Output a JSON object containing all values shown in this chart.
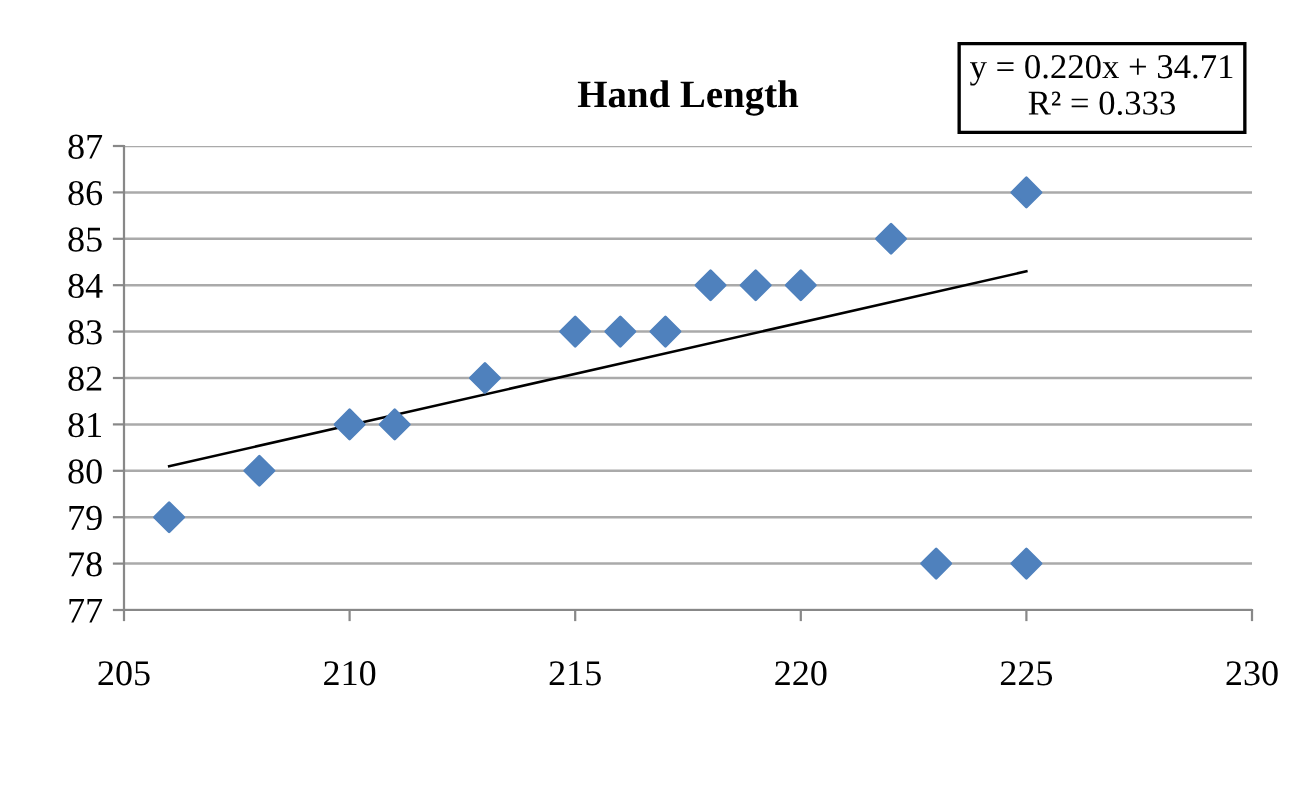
{
  "chart_data": {
    "type": "scatter",
    "title": "Hand Length",
    "series": [
      {
        "color": "#4f81bd",
        "marker": "diamond",
        "x": [
          206,
          208,
          210,
          211,
          213,
          215,
          216,
          217,
          218,
          219,
          220,
          222,
          225,
          223,
          225
        ],
        "values": [
          79,
          80,
          81,
          81,
          82,
          83,
          83,
          83,
          84,
          84,
          84,
          85,
          86,
          78,
          78
        ]
      },
      {
        "type": "line",
        "color": "#000000",
        "marker": "none",
        "line_style": "solid",
        "x": [
          206,
          225
        ],
        "values": [
          80.1,
          84.3
        ]
      }
    ],
    "annotations": [
      "y = 0.220x + 34.71\nR² = 0.333"
    ],
    "xlim": [
      205,
      230
    ],
    "xticks": [
      205,
      210,
      215,
      220,
      225,
      230
    ],
    "ylim": [
      77,
      87
    ],
    "yticks": [
      77,
      78,
      79,
      80,
      81,
      82,
      83,
      84,
      85,
      86,
      87
    ],
    "grid": "y",
    "legend": false
  }
}
